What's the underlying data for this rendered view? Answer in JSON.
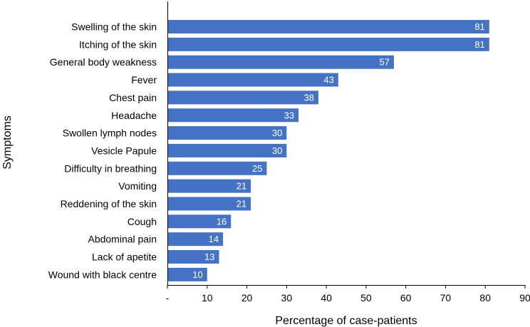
{
  "chart_data": {
    "type": "bar",
    "orientation": "horizontal",
    "categories": [
      "Swelling of the skin",
      "Itching of the skin",
      "General body weakness",
      "Fever",
      "Chest pain",
      "Headache",
      "Swollen lymph nodes",
      "Vesicle Papule",
      "Difficulty in breathing",
      "Vomiting",
      "Reddening of the skin",
      "Cough",
      "Abdominal pain",
      "Lack of apetite",
      "Wound with black centre"
    ],
    "values": [
      81,
      81,
      57,
      43,
      38,
      33,
      30,
      30,
      25,
      21,
      21,
      16,
      14,
      13,
      10
    ],
    "data_labels": [
      "81",
      "81",
      "57",
      "43",
      "38",
      "33",
      "30",
      "30",
      "25",
      "21",
      "21",
      "16",
      "14",
      "13",
      "10"
    ],
    "xlabel": "Percentage of case-patients",
    "ylabel": "Symptoms",
    "xlim": [
      0,
      90
    ],
    "xticks": [
      0,
      10,
      20,
      30,
      40,
      50,
      60,
      70,
      80,
      90
    ],
    "xtick_labels": [
      "-",
      "10",
      "20",
      "30",
      "40",
      "50",
      "60",
      "70",
      "80",
      "90"
    ],
    "grid": false,
    "legend": "none",
    "bar_color": "#4472C4",
    "data_label_color": "#FFFFFF"
  }
}
